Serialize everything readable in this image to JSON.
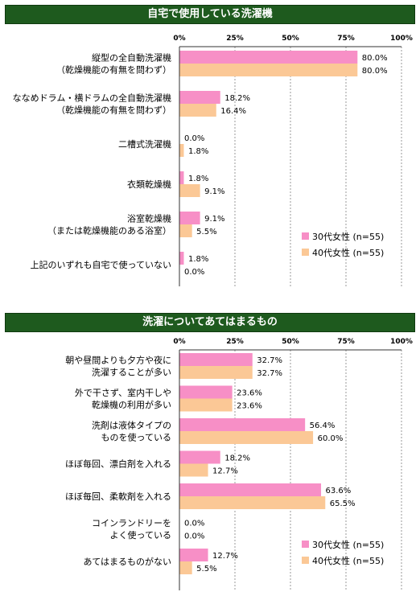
{
  "charts": [
    {
      "title": "自宅で使用している洗濯機",
      "chart_data": {
        "type": "bar",
        "orientation": "horizontal",
        "xlim": [
          0,
          100
        ],
        "x_ticks": [
          "0%",
          "25%",
          "50%",
          "75%",
          "100%"
        ],
        "categories": [
          [
            "縦型の全自動洗濯機",
            "（乾燥機能の有無を問わず）"
          ],
          [
            "ななめドラム・横ドラムの全自動洗濯機",
            "（乾燥機能の有無を問わず）"
          ],
          [
            "二槽式洗濯機"
          ],
          [
            "衣類乾燥機"
          ],
          [
            "浴室乾燥機",
            "（または乾燥機能のある浴室）"
          ],
          [
            "上記のいずれも自宅で使っていない"
          ]
        ],
        "series": [
          {
            "name": "30代女性 (n=55)",
            "color": "#f78fc6",
            "values": [
              80.0,
              18.2,
              0.0,
              1.8,
              9.1,
              1.8
            ],
            "labels": [
              "80.0%",
              "18.2%",
              "0.0%",
              "1.8%",
              "9.1%",
              "1.8%"
            ]
          },
          {
            "name": "40代女性 (n=55)",
            "color": "#fbc896",
            "values": [
              80.0,
              16.4,
              1.8,
              9.1,
              5.5,
              0.0
            ],
            "labels": [
              "80.0%",
              "16.4%",
              "1.8%",
              "9.1%",
              "5.5%",
              "0.0%"
            ]
          }
        ],
        "grid": true,
        "legend": "bottom-right"
      }
    },
    {
      "title": "洗濯についてあてはまるもの",
      "chart_data": {
        "type": "bar",
        "orientation": "horizontal",
        "xlim": [
          0,
          100
        ],
        "x_ticks": [
          "0%",
          "25%",
          "50%",
          "75%",
          "100%"
        ],
        "categories": [
          [
            "朝や昼間よりも夕方や夜に",
            "洗濯することが多い"
          ],
          [
            "外で干さず、室内干しや",
            "乾燥機の利用が多い"
          ],
          [
            "洗剤は液体タイプの",
            "ものを使っている"
          ],
          [
            "ほぼ毎回、漂白剤を入れる"
          ],
          [
            "ほぼ毎回、柔軟剤を入れる"
          ],
          [
            "コインランドリーを",
            "よく使っている"
          ],
          [
            "あてはまるものがない"
          ]
        ],
        "series": [
          {
            "name": "30代女性 (n=55)",
            "color": "#f78fc6",
            "values": [
              32.7,
              23.6,
              56.4,
              18.2,
              63.6,
              0.0,
              12.7
            ],
            "labels": [
              "32.7%",
              "23.6%",
              "56.4%",
              "18.2%",
              "63.6%",
              "0.0%",
              "12.7%"
            ]
          },
          {
            "name": "40代女性 (n=55)",
            "color": "#fbc896",
            "values": [
              32.7,
              23.6,
              60.0,
              12.7,
              65.5,
              0.0,
              5.5
            ],
            "labels": [
              "32.7%",
              "23.6%",
              "60.0%",
              "12.7%",
              "65.5%",
              "0.0%",
              "5.5%"
            ]
          }
        ],
        "grid": true,
        "legend": "bottom-right"
      }
    }
  ]
}
